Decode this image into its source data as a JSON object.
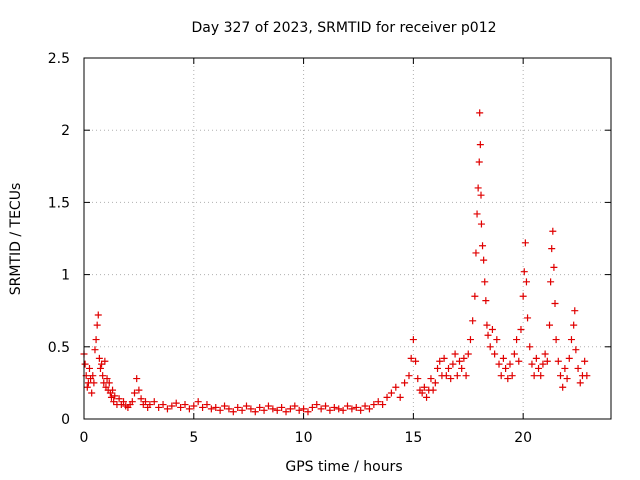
{
  "chart_data": {
    "type": "scatter",
    "title": "Day 327 of 2023, SRMTID for receiver p012",
    "xlabel": "GPS time / hours",
    "ylabel": "SRMTID / TECUs",
    "xlim": [
      0,
      24
    ],
    "ylim": [
      0,
      2.5
    ],
    "xticks": [
      0,
      5,
      10,
      15,
      20
    ],
    "xtick_labels": [
      "0",
      "5",
      "10",
      "15",
      "20"
    ],
    "yticks": [
      0,
      0.5,
      1,
      1.5,
      2,
      2.5
    ],
    "ytick_labels": [
      "0",
      "0.5",
      "1",
      "1.5",
      "2",
      "2.5"
    ],
    "grid": true,
    "marker": "+",
    "color": "#e00000",
    "series": [
      {
        "name": "SRMTID",
        "points": [
          [
            0.0,
            0.45
          ],
          [
            0.05,
            0.38
          ],
          [
            0.1,
            0.3
          ],
          [
            0.15,
            0.22
          ],
          [
            0.2,
            0.25
          ],
          [
            0.25,
            0.35
          ],
          [
            0.3,
            0.28
          ],
          [
            0.35,
            0.18
          ],
          [
            0.4,
            0.3
          ],
          [
            0.45,
            0.25
          ],
          [
            0.5,
            0.48
          ],
          [
            0.55,
            0.55
          ],
          [
            0.6,
            0.65
          ],
          [
            0.65,
            0.72
          ],
          [
            0.7,
            0.42
          ],
          [
            0.75,
            0.35
          ],
          [
            0.8,
            0.38
          ],
          [
            0.85,
            0.3
          ],
          [
            0.9,
            0.25
          ],
          [
            0.95,
            0.4
          ],
          [
            1.0,
            0.22
          ],
          [
            1.05,
            0.28
          ],
          [
            1.1,
            0.2
          ],
          [
            1.15,
            0.25
          ],
          [
            1.2,
            0.18
          ],
          [
            1.25,
            0.15
          ],
          [
            1.3,
            0.2
          ],
          [
            1.35,
            0.12
          ],
          [
            1.4,
            0.16
          ],
          [
            1.5,
            0.1
          ],
          [
            1.6,
            0.14
          ],
          [
            1.7,
            0.1
          ],
          [
            1.8,
            0.12
          ],
          [
            1.9,
            0.09
          ],
          [
            2.0,
            0.08
          ],
          [
            2.1,
            0.1
          ],
          [
            2.2,
            0.12
          ],
          [
            2.3,
            0.18
          ],
          [
            2.4,
            0.28
          ],
          [
            2.5,
            0.2
          ],
          [
            2.6,
            0.14
          ],
          [
            2.7,
            0.1
          ],
          [
            2.8,
            0.12
          ],
          [
            2.9,
            0.08
          ],
          [
            3.0,
            0.1
          ],
          [
            3.2,
            0.12
          ],
          [
            3.4,
            0.08
          ],
          [
            3.6,
            0.1
          ],
          [
            3.8,
            0.07
          ],
          [
            4.0,
            0.09
          ],
          [
            4.2,
            0.11
          ],
          [
            4.4,
            0.08
          ],
          [
            4.6,
            0.1
          ],
          [
            4.8,
            0.07
          ],
          [
            5.0,
            0.09
          ],
          [
            5.2,
            0.12
          ],
          [
            5.4,
            0.08
          ],
          [
            5.6,
            0.1
          ],
          [
            5.8,
            0.07
          ],
          [
            6.0,
            0.08
          ],
          [
            6.2,
            0.06
          ],
          [
            6.4,
            0.09
          ],
          [
            6.6,
            0.07
          ],
          [
            6.8,
            0.05
          ],
          [
            7.0,
            0.08
          ],
          [
            7.2,
            0.06
          ],
          [
            7.4,
            0.09
          ],
          [
            7.6,
            0.07
          ],
          [
            7.8,
            0.05
          ],
          [
            8.0,
            0.08
          ],
          [
            8.2,
            0.06
          ],
          [
            8.4,
            0.09
          ],
          [
            8.6,
            0.07
          ],
          [
            8.8,
            0.06
          ],
          [
            9.0,
            0.08
          ],
          [
            9.2,
            0.05
          ],
          [
            9.4,
            0.07
          ],
          [
            9.6,
            0.09
          ],
          [
            9.8,
            0.06
          ],
          [
            10.0,
            0.07
          ],
          [
            10.2,
            0.05
          ],
          [
            10.4,
            0.08
          ],
          [
            10.6,
            0.1
          ],
          [
            10.8,
            0.07
          ],
          [
            11.0,
            0.09
          ],
          [
            11.2,
            0.06
          ],
          [
            11.4,
            0.08
          ],
          [
            11.6,
            0.07
          ],
          [
            11.8,
            0.06
          ],
          [
            12.0,
            0.09
          ],
          [
            12.2,
            0.07
          ],
          [
            12.4,
            0.08
          ],
          [
            12.6,
            0.06
          ],
          [
            12.8,
            0.09
          ],
          [
            13.0,
            0.07
          ],
          [
            13.2,
            0.1
          ],
          [
            13.4,
            0.12
          ],
          [
            13.6,
            0.1
          ],
          [
            13.8,
            0.15
          ],
          [
            14.0,
            0.18
          ],
          [
            14.2,
            0.22
          ],
          [
            14.4,
            0.15
          ],
          [
            14.6,
            0.25
          ],
          [
            14.8,
            0.3
          ],
          [
            14.9,
            0.42
          ],
          [
            15.0,
            0.55
          ],
          [
            15.1,
            0.4
          ],
          [
            15.2,
            0.28
          ],
          [
            15.3,
            0.2
          ],
          [
            15.4,
            0.18
          ],
          [
            15.5,
            0.22
          ],
          [
            15.6,
            0.15
          ],
          [
            15.7,
            0.2
          ],
          [
            15.8,
            0.28
          ],
          [
            15.9,
            0.2
          ],
          [
            16.0,
            0.25
          ],
          [
            16.1,
            0.35
          ],
          [
            16.2,
            0.4
          ],
          [
            16.3,
            0.3
          ],
          [
            16.4,
            0.42
          ],
          [
            16.5,
            0.3
          ],
          [
            16.6,
            0.35
          ],
          [
            16.7,
            0.28
          ],
          [
            16.8,
            0.38
          ],
          [
            16.9,
            0.45
          ],
          [
            17.0,
            0.3
          ],
          [
            17.1,
            0.4
          ],
          [
            17.2,
            0.35
          ],
          [
            17.3,
            0.42
          ],
          [
            17.4,
            0.3
          ],
          [
            17.5,
            0.45
          ],
          [
            17.6,
            0.55
          ],
          [
            17.7,
            0.68
          ],
          [
            17.8,
            0.85
          ],
          [
            17.85,
            1.15
          ],
          [
            17.9,
            1.42
          ],
          [
            17.95,
            1.6
          ],
          [
            18.0,
            1.78
          ],
          [
            18.02,
            2.12
          ],
          [
            18.05,
            1.9
          ],
          [
            18.08,
            1.55
          ],
          [
            18.1,
            1.35
          ],
          [
            18.15,
            1.2
          ],
          [
            18.2,
            1.1
          ],
          [
            18.25,
            0.95
          ],
          [
            18.3,
            0.82
          ],
          [
            18.35,
            0.65
          ],
          [
            18.4,
            0.58
          ],
          [
            18.5,
            0.5
          ],
          [
            18.6,
            0.62
          ],
          [
            18.7,
            0.45
          ],
          [
            18.8,
            0.55
          ],
          [
            18.9,
            0.38
          ],
          [
            19.0,
            0.3
          ],
          [
            19.1,
            0.42
          ],
          [
            19.2,
            0.35
          ],
          [
            19.3,
            0.28
          ],
          [
            19.4,
            0.38
          ],
          [
            19.5,
            0.3
          ],
          [
            19.6,
            0.45
          ],
          [
            19.7,
            0.55
          ],
          [
            19.8,
            0.4
          ],
          [
            19.9,
            0.62
          ],
          [
            20.0,
            0.85
          ],
          [
            20.05,
            1.02
          ],
          [
            20.1,
            1.22
          ],
          [
            20.15,
            0.95
          ],
          [
            20.2,
            0.7
          ],
          [
            20.3,
            0.5
          ],
          [
            20.4,
            0.38
          ],
          [
            20.5,
            0.3
          ],
          [
            20.6,
            0.42
          ],
          [
            20.7,
            0.35
          ],
          [
            20.8,
            0.3
          ],
          [
            20.9,
            0.38
          ],
          [
            21.0,
            0.45
          ],
          [
            21.1,
            0.4
          ],
          [
            21.2,
            0.65
          ],
          [
            21.25,
            0.95
          ],
          [
            21.3,
            1.18
          ],
          [
            21.35,
            1.3
          ],
          [
            21.4,
            1.05
          ],
          [
            21.45,
            0.8
          ],
          [
            21.5,
            0.55
          ],
          [
            21.6,
            0.4
          ],
          [
            21.7,
            0.3
          ],
          [
            21.8,
            0.22
          ],
          [
            21.9,
            0.35
          ],
          [
            22.0,
            0.28
          ],
          [
            22.1,
            0.42
          ],
          [
            22.2,
            0.55
          ],
          [
            22.3,
            0.65
          ],
          [
            22.35,
            0.75
          ],
          [
            22.4,
            0.48
          ],
          [
            22.5,
            0.35
          ],
          [
            22.6,
            0.25
          ],
          [
            22.7,
            0.3
          ],
          [
            22.8,
            0.4
          ],
          [
            22.9,
            0.3
          ]
        ]
      }
    ]
  }
}
